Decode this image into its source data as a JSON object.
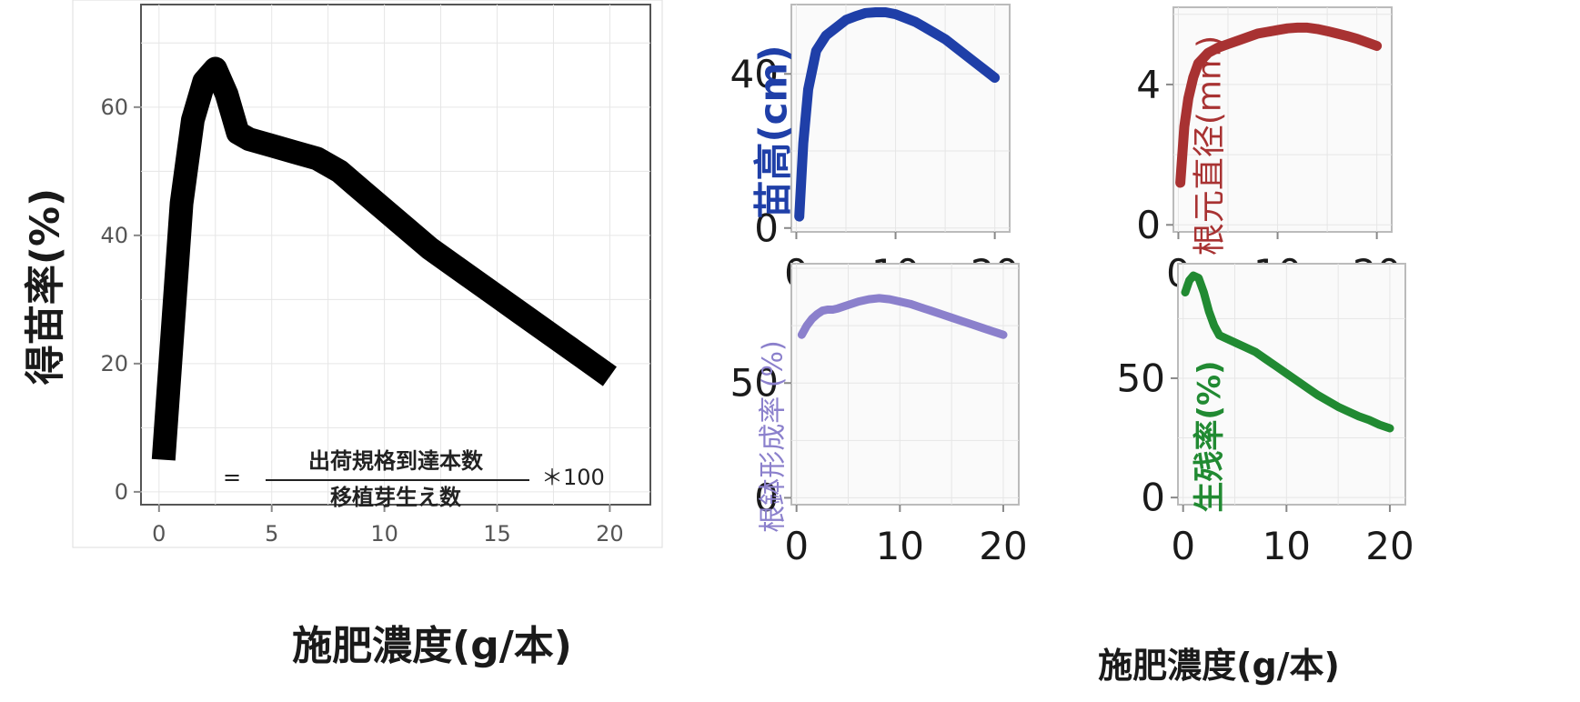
{
  "chart_data": [
    {
      "type": "line",
      "ylabel": "得苗率(%)",
      "xlabel": "施肥濃度(g/本)",
      "xlim": [
        -0.8,
        21.8
      ],
      "ylim": [
        -2,
        76
      ],
      "x_ticks": [
        0,
        5,
        10,
        15,
        20
      ],
      "y_ticks": [
        0,
        20,
        40,
        60
      ],
      "grid": true,
      "series": [
        {
          "color": "#000000",
          "x": [
            0.2,
            0.6,
            1.0,
            1.5,
            2.0,
            2.5,
            3.0,
            3.5,
            4.0,
            5.0,
            6.0,
            7.0,
            8.0,
            9.0,
            10.0,
            11.0,
            12.0,
            13.0,
            14.0,
            15.0,
            16.0,
            17.0,
            18.0,
            19.0,
            20.0
          ],
          "y": [
            5,
            25,
            45,
            58,
            64,
            66,
            62,
            56,
            55,
            54,
            53,
            52,
            50,
            47,
            44,
            41,
            38,
            35.5,
            33,
            30.5,
            28,
            25.5,
            23,
            20.5,
            18
          ]
        }
      ],
      "annotation": {
        "prefix": "=",
        "numerator": "出荷規格到達本数",
        "denominator": "移植芽生え数",
        "suffix": "＊100"
      }
    },
    {
      "type": "line",
      "ylabel": "苗高(cm)",
      "xlim": [
        -0.5,
        21.5
      ],
      "ylim": [
        -1,
        58
      ],
      "x_ticks": [
        0,
        10,
        20
      ],
      "y_ticks": [
        0,
        40
      ],
      "grid": true,
      "series": [
        {
          "color": "#1f3fa8",
          "x": [
            0.3,
            0.7,
            1.2,
            2.0,
            3.0,
            4.0,
            5.0,
            6.0,
            7.0,
            8.0,
            9.0,
            10.0,
            11.0,
            12.0,
            13.0,
            14.0,
            15.0,
            16.0,
            17.0,
            18.0,
            19.0,
            20.0
          ],
          "y": [
            3,
            22,
            36,
            46,
            50,
            52,
            54,
            55,
            55.8,
            56,
            56,
            55.5,
            54.5,
            53.5,
            52,
            50.5,
            49,
            47,
            45,
            43,
            41,
            39
          ]
        }
      ]
    },
    {
      "type": "line",
      "ylabel": "根元直径(mm)",
      "xlim": [
        -0.5,
        21.5
      ],
      "ylim": [
        -0.2,
        6.2
      ],
      "x_ticks": [
        0,
        10,
        20
      ],
      "y_ticks": [
        0,
        4
      ],
      "grid": true,
      "series": [
        {
          "color": "#a83232",
          "x": [
            0.2,
            0.6,
            1.0,
            1.5,
            2.0,
            3.0,
            4.0,
            5.0,
            6.0,
            7.0,
            8.0,
            9.0,
            10.0,
            11.0,
            12.0,
            13.0,
            14.0,
            15.0,
            16.0,
            17.0,
            18.0,
            19.0,
            20.0
          ],
          "y": [
            1.2,
            2.8,
            3.6,
            4.2,
            4.6,
            4.9,
            5.05,
            5.15,
            5.25,
            5.35,
            5.45,
            5.5,
            5.55,
            5.6,
            5.62,
            5.62,
            5.58,
            5.52,
            5.45,
            5.38,
            5.3,
            5.2,
            5.1
          ]
        }
      ]
    },
    {
      "type": "line",
      "ylabel": "根鉢形成率 (%)",
      "xlim": [
        -0.5,
        21.5
      ],
      "ylim": [
        -3,
        102
      ],
      "x_ticks": [
        0,
        10,
        20
      ],
      "y_ticks": [
        0,
        50
      ],
      "grid": true,
      "series": [
        {
          "color": "#8b80cc",
          "x": [
            0.5,
            1.0,
            1.5,
            2.0,
            2.5,
            3.0,
            3.5,
            4.0,
            5.0,
            6.0,
            7.0,
            8.0,
            9.0,
            10.0,
            11.0,
            12.0,
            13.0,
            14.0,
            15.0,
            16.0,
            17.0,
            18.0,
            19.0,
            20.0
          ],
          "y": [
            71,
            75,
            78,
            80,
            81.5,
            82,
            82,
            82.5,
            84,
            85.5,
            86.5,
            87,
            86.5,
            85.5,
            84.5,
            83,
            81.5,
            80,
            78.5,
            77,
            75.5,
            74,
            72.5,
            71
          ]
        }
      ]
    },
    {
      "type": "line",
      "ylabel": "生残率(%)",
      "xlim": [
        -0.5,
        21.5
      ],
      "ylim": [
        -3,
        98
      ],
      "x_ticks": [
        0,
        10,
        20
      ],
      "y_ticks": [
        0,
        50
      ],
      "grid": true,
      "series": [
        {
          "color": "#218a32",
          "x": [
            0.2,
            0.6,
            1.0,
            1.5,
            2.0,
            2.5,
            3.0,
            3.5,
            4.0,
            5.0,
            6.0,
            7.0,
            8.0,
            9.0,
            10.0,
            11.0,
            12.0,
            13.0,
            14.0,
            15.0,
            16.0,
            17.0,
            18.0,
            19.0,
            20.0
          ],
          "y": [
            86,
            91,
            93,
            92,
            86,
            78,
            72,
            68,
            67,
            65,
            63,
            61,
            58,
            55,
            52,
            49,
            46,
            43,
            40.5,
            38,
            36,
            34,
            32.5,
            30.5,
            29
          ]
        }
      ]
    }
  ],
  "shared_xlabel": "施肥濃度(g/本)"
}
